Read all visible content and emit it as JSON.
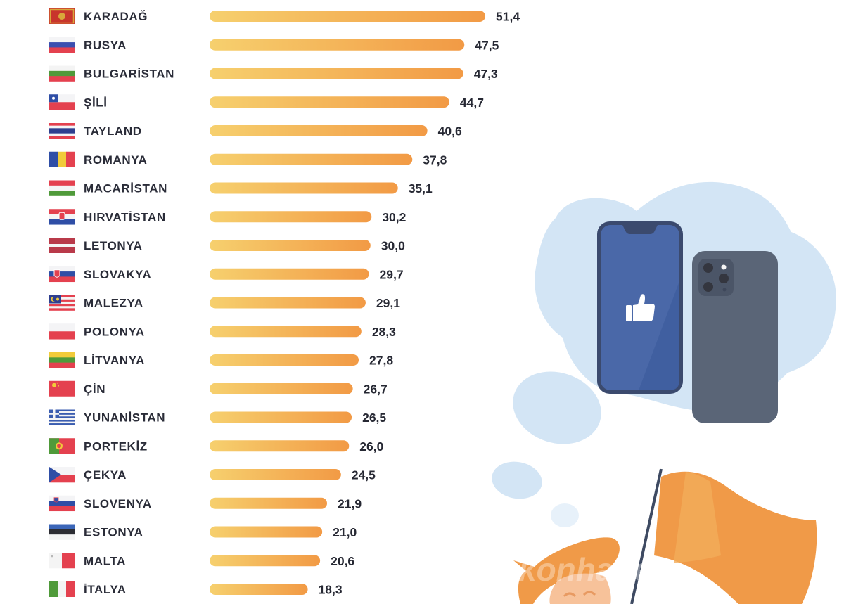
{
  "chart_data": {
    "type": "bar",
    "orientation": "horizontal",
    "categories": [
      "KARADAĞ",
      "RUSYA",
      "BULGARİSTAN",
      "ŞİLİ",
      "TAYLAND",
      "ROMANYA",
      "MACARİSTAN",
      "HIRVATİSTAN",
      "LETONYA",
      "SLOVAKYA",
      "MALEZYA",
      "POLONYA",
      "LİTVANYA",
      "ÇİN",
      "YUNANİSTAN",
      "PORTEKİZ",
      "ÇEKYA",
      "SLOVENYA",
      "ESTONYA",
      "MALTA",
      "İTALYA"
    ],
    "values": [
      51.4,
      47.5,
      47.3,
      44.7,
      40.6,
      37.8,
      35.1,
      30.2,
      30.0,
      29.7,
      29.1,
      28.3,
      27.8,
      26.7,
      26.5,
      26.0,
      24.5,
      21.9,
      21.0,
      20.6,
      18.3
    ],
    "value_labels": [
      "51,4",
      "47,5",
      "47,3",
      "44,7",
      "40,6",
      "37,8",
      "35,1",
      "30,2",
      "30,0",
      "29,7",
      "29,1",
      "28,3",
      "27,8",
      "26,7",
      "26,5",
      "26,0",
      "24,5",
      "21,9",
      "21,0",
      "20,6",
      "18,3"
    ],
    "flags": [
      "montenegro",
      "russia",
      "bulgaria",
      "chile",
      "thailand",
      "romania",
      "hungary",
      "croatia",
      "latvia",
      "slovakia",
      "malaysia",
      "poland",
      "lithuania",
      "china",
      "greece",
      "portugal",
      "czechia",
      "slovenia",
      "estonia",
      "malta",
      "italy"
    ],
    "title": "",
    "xlabel": "",
    "ylabel": "",
    "xlim": [
      0,
      51.4
    ],
    "grid": false,
    "legend": "none"
  },
  "colors": {
    "bar_start": "#F6D06E",
    "bar_end": "#F29A45",
    "label_text": "#2a2c38",
    "blob": "#D3E5F5",
    "phone_front": "#4A68A8",
    "phone_back": "#5A6577",
    "flag_orange": "#F09A48"
  },
  "illustration": {
    "icons": [
      "thumbs-up-icon",
      "phone-front",
      "phone-back",
      "flag",
      "person"
    ],
    "watermark": "konhaber"
  }
}
